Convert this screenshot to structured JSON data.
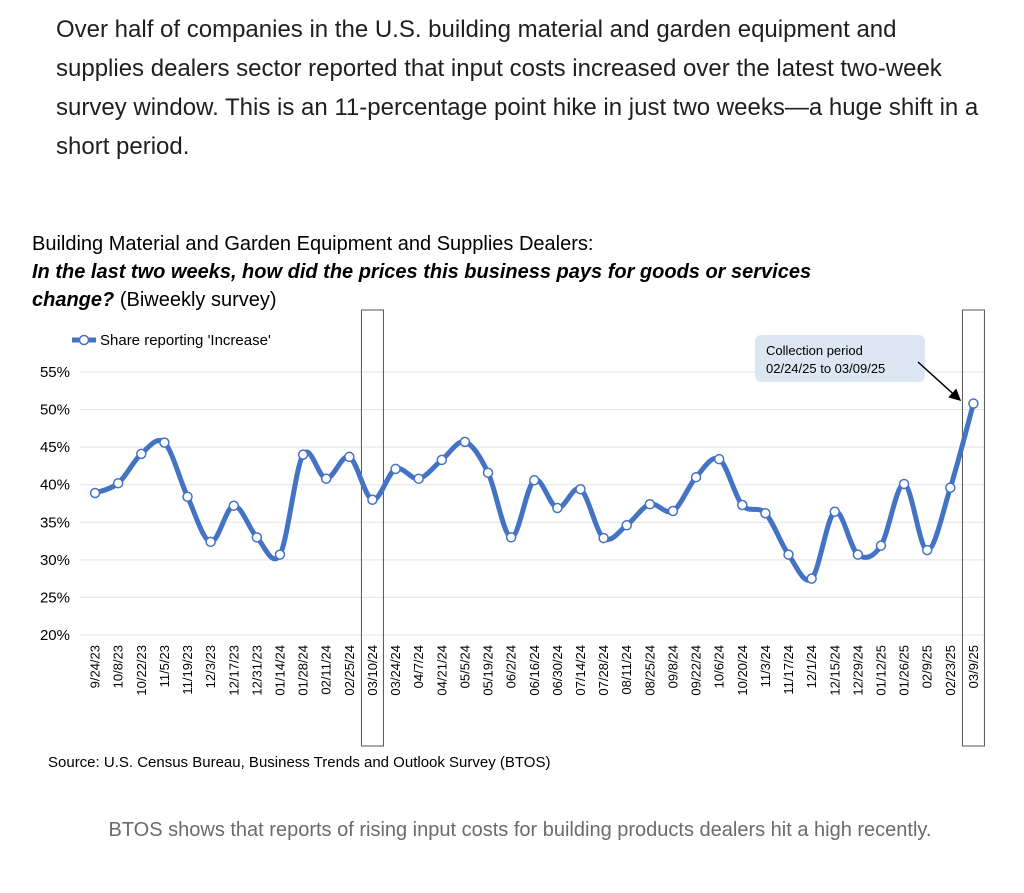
{
  "intro": "Over half of companies in the U.S. building material and garden equipment and supplies dealers sector reported that input costs increased over the latest two-week survey window. This is an 11-percentage point hike in just two weeks—a huge shift in a short period.",
  "chart_data": {
    "type": "line",
    "title": "Building Material and Garden Equipment and Supplies Dealers:",
    "question_lines": [
      "In the last two weeks, how did the prices this business pays for goods or services",
      "change?"
    ],
    "subtitle": "(Biweekly survey)",
    "categories": [
      "9/24/23",
      "10/8/23",
      "10/22/23",
      "11/5/23",
      "11/19/23",
      "12/3/23",
      "12/17/23",
      "12/31/23",
      "01/14/24",
      "01/28/24",
      "02/11/24",
      "02/25/24",
      "03/10/24",
      "03/24/24",
      "04/7/24",
      "04/21/24",
      "05/5/24",
      "05/19/24",
      "06/2/24",
      "06/16/24",
      "06/30/24",
      "07/14/24",
      "07/28/24",
      "08/11/24",
      "08/25/24",
      "09/8/24",
      "09/22/24",
      "10/6/24",
      "10/20/24",
      "11/3/24",
      "11/17/24",
      "12/1/24",
      "12/15/24",
      "12/29/24",
      "01/12/25",
      "01/26/25",
      "02/9/25",
      "02/23/25",
      "03/9/25"
    ],
    "series": [
      {
        "name": "Share reporting 'Increase'",
        "color": "#4472c4",
        "values": [
          38.9,
          40.2,
          44.1,
          45.6,
          38.4,
          32.4,
          37.2,
          33.0,
          30.7,
          44.0,
          40.8,
          43.7,
          38.0,
          42.1,
          40.8,
          43.3,
          45.7,
          41.6,
          33.0,
          40.6,
          36.9,
          39.4,
          32.9,
          34.6,
          37.4,
          36.5,
          41.0,
          43.4,
          37.3,
          36.2,
          30.7,
          27.5,
          36.4,
          30.7,
          31.9,
          40.1,
          31.3,
          39.6,
          50.8
        ]
      }
    ],
    "ylim": [
      20,
      55
    ],
    "yticks": [
      {
        "value": 20,
        "label": "20%"
      },
      {
        "value": 25,
        "label": "25%"
      },
      {
        "value": 30,
        "label": "30%"
      },
      {
        "value": 35,
        "label": "35%"
      },
      {
        "value": 40,
        "label": "40%"
      },
      {
        "value": 45,
        "label": "45%"
      },
      {
        "value": 50,
        "label": "50%"
      },
      {
        "value": 55,
        "label": "55%"
      }
    ],
    "grid": true,
    "annotation": [
      "Collection period",
      "02/24/25 to 03/09/25"
    ],
    "source": "Source: U.S. Census Bureau, Business Trends and Outlook Survey (BTOS)"
  },
  "caption": "BTOS shows that reports of rising input costs for building products dealers hit a high recently."
}
